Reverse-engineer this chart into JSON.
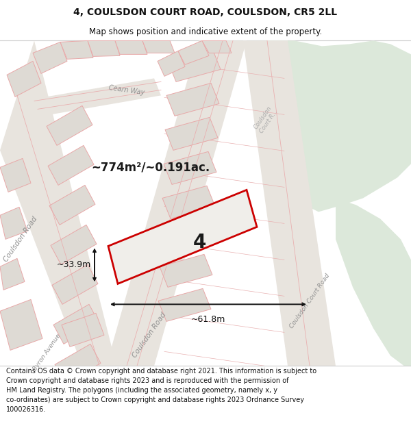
{
  "title_line1": "4, COULSDON COURT ROAD, COULSDON, CR5 2LL",
  "title_line2": "Map shows position and indicative extent of the property.",
  "footer_text": "Contains OS data © Crown copyright and database right 2021. This information is subject to Crown copyright and database rights 2023 and is reproduced with the permission of\nHM Land Registry. The polygons (including the associated geometry, namely x, y co-ordinates) are subject to Crown copyright and database rights 2023 Ordnance Survey\n100026316.",
  "area_label": "~774m²/~0.191ac.",
  "width_label": "~61.8m",
  "height_label": "~33.9m",
  "plot_number": "4",
  "map_bg": "#f0eeea",
  "green_color": "#dce8da",
  "road_fill": "#e8e4de",
  "building_fill": "#dedad4",
  "building_edge": "#e8a8a8",
  "plot_fill": "#f0eeea",
  "plot_edge": "#cc0000",
  "road_line": "#e8b0b0",
  "label_gray": "#909090",
  "title_fs": 10,
  "sub_fs": 8.5,
  "footer_fs": 7.0
}
